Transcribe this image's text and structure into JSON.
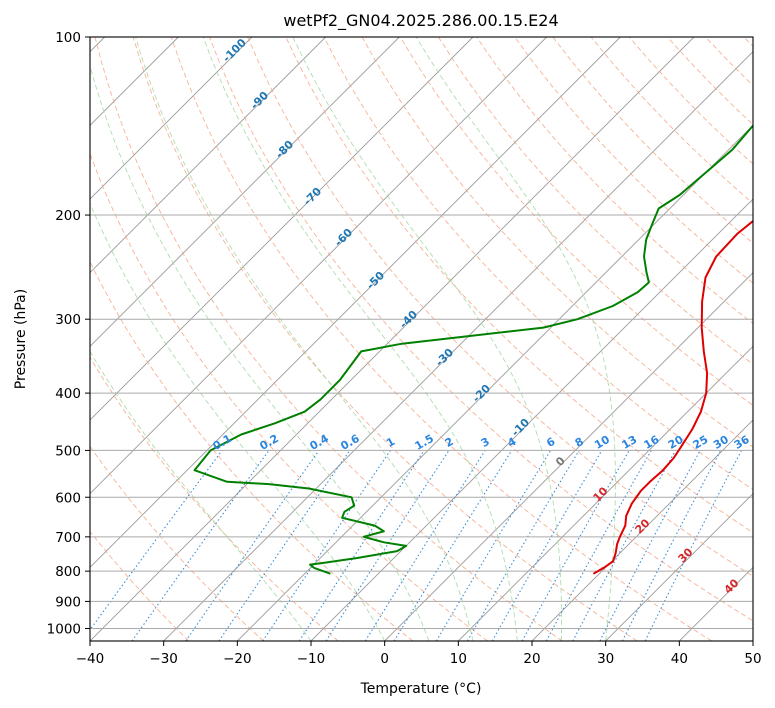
{
  "chart_data": {
    "type": "skew-t",
    "title": "wetPf2_GN04.2025.286.00.15.E24",
    "xlabel": "Temperature (°C)",
    "ylabel": "Pressure (hPa)",
    "xlim": [
      -40,
      50
    ],
    "ylim_hpa": [
      1050,
      100
    ],
    "x_ticks": [
      -40,
      -30,
      -20,
      -10,
      0,
      10,
      20,
      30,
      40,
      50
    ],
    "x_tick_labels": [
      "−40",
      "−30",
      "−20",
      "−10",
      "0",
      "10",
      "20",
      "30",
      "40",
      "50"
    ],
    "y_ticks": [
      100,
      200,
      300,
      400,
      500,
      600,
      700,
      800,
      900,
      1000
    ],
    "y_tick_labels": [
      "100",
      "200",
      "300",
      "400",
      "500",
      "600",
      "700",
      "800",
      "900",
      "1000"
    ],
    "mixing_ratio_labels": [
      "0.1",
      "0.2",
      "0.4",
      "0.6",
      "1",
      "1.5",
      "2",
      "3",
      "4",
      "6",
      "8",
      "10",
      "13",
      "16",
      "20",
      "25",
      "30",
      "36"
    ],
    "dry_adiabat_labels": [
      "-100",
      "-90",
      "-80",
      "-70",
      "-60",
      "-50",
      "-40",
      "-30",
      "-20",
      "-10"
    ],
    "moist_adiabat_labels": [
      "0",
      "10",
      "20",
      "30",
      "40"
    ],
    "series": [
      {
        "name": "Temperature",
        "color": "#e00000",
        "points": [
          [
            808,
            19.2
          ],
          [
            790,
            19.8
          ],
          [
            770,
            20.2
          ],
          [
            745,
            19.4
          ],
          [
            720,
            18.4
          ],
          [
            700,
            17.8
          ],
          [
            670,
            17.0
          ],
          [
            645,
            15.8
          ],
          [
            615,
            14.9
          ],
          [
            585,
            14.4
          ],
          [
            565,
            14.4
          ],
          [
            540,
            14.6
          ],
          [
            515,
            14.4
          ],
          [
            490,
            13.8
          ],
          [
            460,
            13.0
          ],
          [
            430,
            11.8
          ],
          [
            400,
            10.0
          ],
          [
            370,
            7.4
          ],
          [
            340,
            4.0
          ],
          [
            310,
            0.5
          ],
          [
            280,
            -3.0
          ],
          [
            255,
            -5.8
          ],
          [
            235,
            -7.2
          ],
          [
            215,
            -7.4
          ],
          [
            200,
            -6.8
          ],
          [
            185,
            -5.5
          ],
          [
            170,
            -3.5
          ],
          [
            150,
            -0.5
          ],
          [
            135,
            2.5
          ],
          [
            125,
            5.0
          ],
          [
            118,
            7.5
          ],
          [
            112,
            8.7
          ],
          [
            106,
            9.0
          ],
          [
            100,
            10.0
          ]
        ]
      },
      {
        "name": "Dewpoint",
        "color": "#008000",
        "points": [
          [
            808,
            -16.5
          ],
          [
            790,
            -19.5
          ],
          [
            780,
            -20.5
          ],
          [
            775,
            -19.0
          ],
          [
            760,
            -15.0
          ],
          [
            740,
            -10.5
          ],
          [
            725,
            -10.0
          ],
          [
            715,
            -13.5
          ],
          [
            700,
            -17.0
          ],
          [
            685,
            -15.0
          ],
          [
            670,
            -17.0
          ],
          [
            650,
            -22.5
          ],
          [
            635,
            -23.0
          ],
          [
            620,
            -22.5
          ],
          [
            600,
            -24.0
          ],
          [
            580,
            -31.0
          ],
          [
            570,
            -37.0
          ],
          [
            565,
            -43.0
          ],
          [
            540,
            -49.0
          ],
          [
            500,
            -49.5
          ],
          [
            470,
            -47.5
          ],
          [
            450,
            -44.5
          ],
          [
            430,
            -42.0
          ],
          [
            410,
            -41.5
          ],
          [
            380,
            -41.5
          ],
          [
            340,
            -42.5
          ],
          [
            330,
            -38.0
          ],
          [
            310,
            -21.0
          ],
          [
            300,
            -17.5
          ],
          [
            285,
            -14.5
          ],
          [
            270,
            -13.0
          ],
          [
            260,
            -12.8
          ],
          [
            250,
            -14.5
          ],
          [
            235,
            -17.0
          ],
          [
            220,
            -19.0
          ],
          [
            205,
            -20.5
          ],
          [
            195,
            -21.5
          ],
          [
            185,
            -20.5
          ],
          [
            170,
            -20.0
          ],
          [
            155,
            -19.5
          ],
          [
            140,
            -20.0
          ],
          [
            125,
            -20.5
          ],
          [
            115,
            -20.2
          ],
          [
            108,
            -19.5
          ],
          [
            100,
            -19.5
          ]
        ]
      }
    ]
  }
}
